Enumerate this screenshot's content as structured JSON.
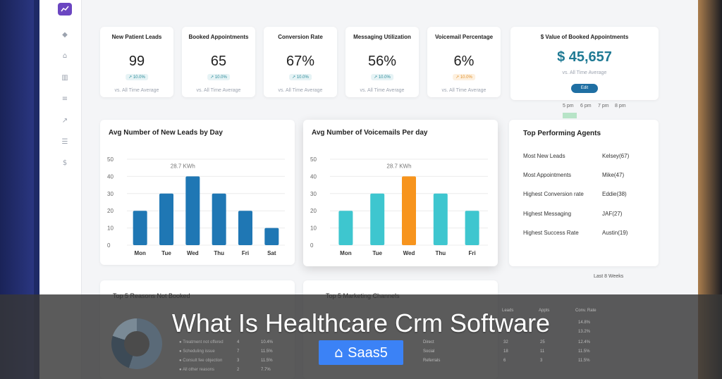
{
  "colors": {
    "bar_blue": "#1f77b4",
    "bar_teal": "#3ec6cf",
    "bar_orange": "#f7941d",
    "value_accent": "#1f7a94",
    "edit_button": "#1f6fa3",
    "brand_button": "#3b82f6"
  },
  "sidebar": {
    "icons": [
      "chart-logo-icon",
      "layers-icon",
      "home-icon",
      "bar-chart-icon",
      "list-icon",
      "trend-icon",
      "menu-icon",
      "dollar-icon"
    ]
  },
  "stats": [
    {
      "title": "New Patient Leads",
      "value": "99",
      "badge": "10.0%",
      "foot": "vs. All Time Average",
      "badge_style": "up"
    },
    {
      "title": "Booked Appointments",
      "value": "65",
      "badge": "10.0%",
      "foot": "vs. All Time Average",
      "badge_style": "up"
    },
    {
      "title": "Conversion Rate",
      "value": "67%",
      "badge": "10.0%",
      "foot": "vs. All Time Average",
      "badge_style": "up"
    },
    {
      "title": "Messaging Utilization",
      "value": "56%",
      "badge": "10.0%",
      "foot": "vs. All Time Average",
      "badge_style": "up"
    },
    {
      "title": "Voicemail Percentage",
      "value": "6%",
      "badge": "10.0%",
      "foot": "vs. All Time Average",
      "badge_style": "warn"
    }
  ],
  "booked_value": {
    "title": "$ Value of Booked Appointments",
    "value": "$ 45,657",
    "foot": "vs. All Time Average",
    "edit_label": "Edit"
  },
  "time_labels": [
    "5 pm",
    "6 pm",
    "7 pm",
    "8 pm"
  ],
  "agents": {
    "title": "Top Performing Agents",
    "rows": [
      {
        "label": "Most New Leads",
        "value": "Kelsey(67)"
      },
      {
        "label": "Most Appointments",
        "value": "Mike(47)"
      },
      {
        "label": "Highest Conversion rate",
        "value": "Eddie(38)"
      },
      {
        "label": "Highest Messaging",
        "value": "JAF(27)"
      },
      {
        "label": "Highest Success Rate",
        "value": "Austin(19)"
      }
    ]
  },
  "last_weeks": "Last 8 Weeks",
  "lower": {
    "reasons_title": "Top 5 Reasons Not Booked",
    "channels_title": "Top 5 Marketing Channels",
    "reasons": [
      {
        "label": "Treatment not offered",
        "count": "4",
        "pct": "10.4%"
      },
      {
        "label": "Scheduling issue",
        "count": "7",
        "pct": "11.5%"
      },
      {
        "label": "Consult fee objection",
        "count": "3",
        "pct": "11.5%"
      },
      {
        "label": "All other reasons",
        "count": "2",
        "pct": "7.7%"
      }
    ],
    "channels_headers": [
      "Leads",
      "Appts",
      "Conv. Rate"
    ],
    "channels": [
      {
        "label": "Direct",
        "leads": "32",
        "appts": "25",
        "rate": "12.4%"
      },
      {
        "label": "Social",
        "leads": "18",
        "appts": "11",
        "rate": "11.5%"
      },
      {
        "label": "Referrals",
        "leads": "6",
        "appts": "3",
        "rate": "11.5%"
      }
    ],
    "channel_rates_top": [
      "14.8%",
      "13.2%"
    ]
  },
  "overlay": {
    "headline": "What Is Healthcare Crm Software",
    "brand_label": "Saas5",
    "brand_icon": "tag-icon"
  },
  "chart_data": [
    {
      "type": "bar",
      "title": "Avg Number of New Leads by Day",
      "categories": [
        "Mon",
        "Tue",
        "Wed",
        "Thu",
        "Fri",
        "Sat"
      ],
      "values": [
        20,
        30,
        40,
        30,
        20,
        10
      ],
      "ylim": [
        0,
        50
      ],
      "yticks": [
        0,
        10,
        20,
        30,
        40,
        50
      ],
      "annotation": "28.7 KWh",
      "grid": true,
      "bar_colors": [
        "#1f77b4",
        "#1f77b4",
        "#1f77b4",
        "#1f77b4",
        "#1f77b4",
        "#1f77b4"
      ]
    },
    {
      "type": "bar",
      "title": "Avg Number of Voicemails Per day",
      "categories": [
        "Mon",
        "Tue",
        "Wed",
        "Thu",
        "Fri"
      ],
      "values": [
        20,
        30,
        40,
        30,
        20
      ],
      "ylim": [
        0,
        50
      ],
      "yticks": [
        0,
        10,
        20,
        30,
        40,
        50
      ],
      "annotation": "28.7 KWh",
      "grid": true,
      "bar_colors": [
        "#3ec6cf",
        "#3ec6cf",
        "#f7941d",
        "#3ec6cf",
        "#3ec6cf"
      ]
    }
  ]
}
